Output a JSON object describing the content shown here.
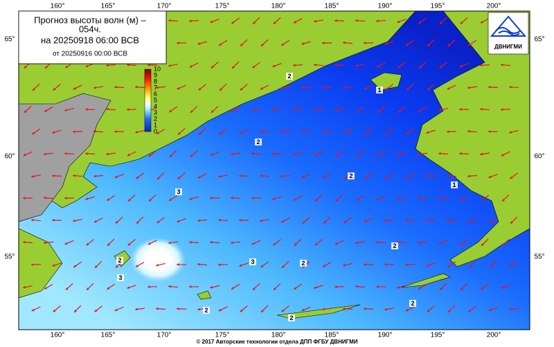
{
  "header": {
    "title_line1": "Прогноз высоты волн (м) –",
    "title_line2": "054ч.",
    "forecast_time": "на 20250918 06:00 ВСВ",
    "base_time": "от 20250916 00:00 ВСВ"
  },
  "colorbar": {
    "ticks": [
      10,
      9,
      8,
      7,
      6,
      5,
      4,
      3,
      2,
      1,
      0
    ]
  },
  "longitude_labels": [
    "160°",
    "165°",
    "170°",
    "175°",
    "180°",
    "185°",
    "190°",
    "195°",
    "200°"
  ],
  "latitude_labels": [
    "65°",
    "60°",
    "55°"
  ],
  "contour_labels": [
    "2",
    "1",
    "2",
    "2",
    "3",
    "1",
    "2",
    "3",
    "3",
    "2",
    "2",
    "2",
    "2",
    "2"
  ],
  "logo": {
    "text": "ДВНИГМИ"
  },
  "footer": "© 2017 Авторские технологии отдела ДПП ФГБУ ДВНИГМИ"
}
